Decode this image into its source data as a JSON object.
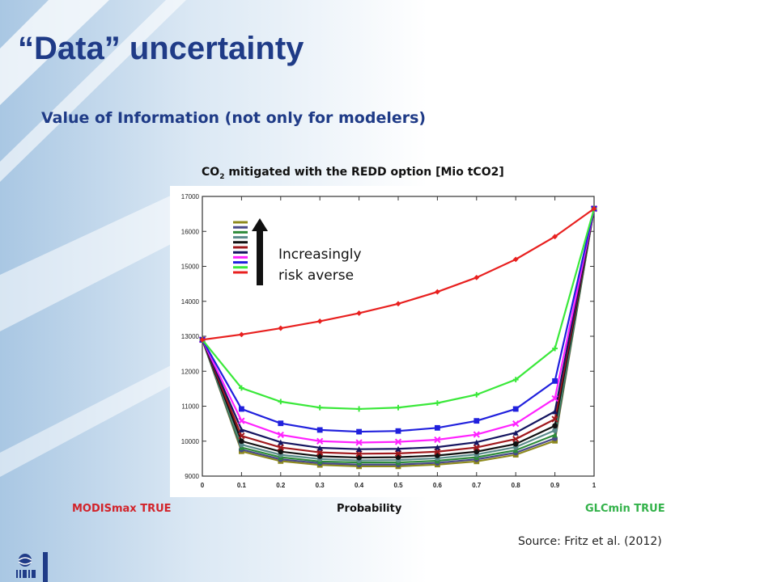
{
  "slide": {
    "title": "“Data” uncertainty",
    "subtitle": "Value of Information (not only for modelers)",
    "source": "Source: Fritz et al. (2012)"
  },
  "chart_data": {
    "type": "line",
    "title_main": "CO",
    "title_sub": "2",
    "title_rest": " mitigated with the REDD option [Mio tCO2]",
    "x": [
      0,
      0.1,
      0.2,
      0.3,
      0.4,
      0.5,
      0.6,
      0.7,
      0.8,
      0.9,
      1
    ],
    "xtick_labels": [
      "0",
      "0.1",
      "0.2",
      "0.3",
      "0.4",
      "0.5",
      "0.6",
      "0.7",
      "0.8",
      "0.9",
      "1"
    ],
    "yticks": [
      9000,
      10000,
      11000,
      12000,
      13000,
      14000,
      15000,
      16000,
      17000
    ],
    "ylim": [
      9000,
      17000
    ],
    "xlim": [
      0,
      1
    ],
    "grid": false,
    "xlabel_left": "MODISmax TRUE",
    "xlabel_center": "Probability",
    "xlabel_right": "GLCmin TRUE",
    "annotation": [
      "Increasingly",
      "risk averse"
    ],
    "series": [
      {
        "color": "#e8201f",
        "marker": "diamond",
        "values": [
          12900,
          13050,
          13230,
          13430,
          13660,
          13930,
          14270,
          14680,
          15200,
          15850,
          16650
        ]
      },
      {
        "color": "#3ae83a",
        "marker": "plus",
        "values": [
          12900,
          11520,
          11130,
          10960,
          10920,
          10960,
          11090,
          11330,
          11760,
          12650,
          16650
        ]
      },
      {
        "color": "#2020dd",
        "marker": "square",
        "values": [
          12900,
          10920,
          10510,
          10320,
          10270,
          10290,
          10380,
          10580,
          10920,
          11720,
          16650
        ]
      },
      {
        "color": "#ff22ff",
        "marker": "x",
        "values": [
          12900,
          10580,
          10180,
          10000,
          9960,
          9980,
          10040,
          10190,
          10500,
          11220,
          16650
        ]
      },
      {
        "color": "#151560",
        "marker": "triangle",
        "values": [
          12900,
          10330,
          9970,
          9810,
          9770,
          9780,
          9830,
          9970,
          10240,
          10850,
          16650
        ]
      },
      {
        "color": "#a0181c",
        "marker": "x",
        "values": [
          12900,
          10150,
          9820,
          9680,
          9640,
          9650,
          9700,
          9820,
          10060,
          10630,
          16650
        ]
      },
      {
        "color": "#111111",
        "marker": "circle",
        "values": [
          12900,
          10000,
          9700,
          9570,
          9530,
          9540,
          9590,
          9700,
          9920,
          10440,
          16650
        ]
      },
      {
        "color": "#5a8a8a",
        "marker": "circle",
        "values": [
          12900,
          9900,
          9610,
          9490,
          9450,
          9460,
          9510,
          9620,
          9830,
          10310,
          16650
        ]
      },
      {
        "color": "#2e8b3a",
        "marker": "triangle",
        "values": [
          12900,
          9820,
          9540,
          9420,
          9390,
          9390,
          9440,
          9540,
          9740,
          10180,
          16650
        ]
      },
      {
        "color": "#4a4a8a",
        "marker": "circle",
        "values": [
          12900,
          9760,
          9480,
          9370,
          9330,
          9330,
          9380,
          9480,
          9670,
          10080,
          16650
        ]
      },
      {
        "color": "#8e8a1e",
        "marker": "square",
        "values": [
          12900,
          9710,
          9430,
          9320,
          9280,
          9280,
          9330,
          9420,
          9610,
          10010,
          16650
        ]
      }
    ]
  }
}
